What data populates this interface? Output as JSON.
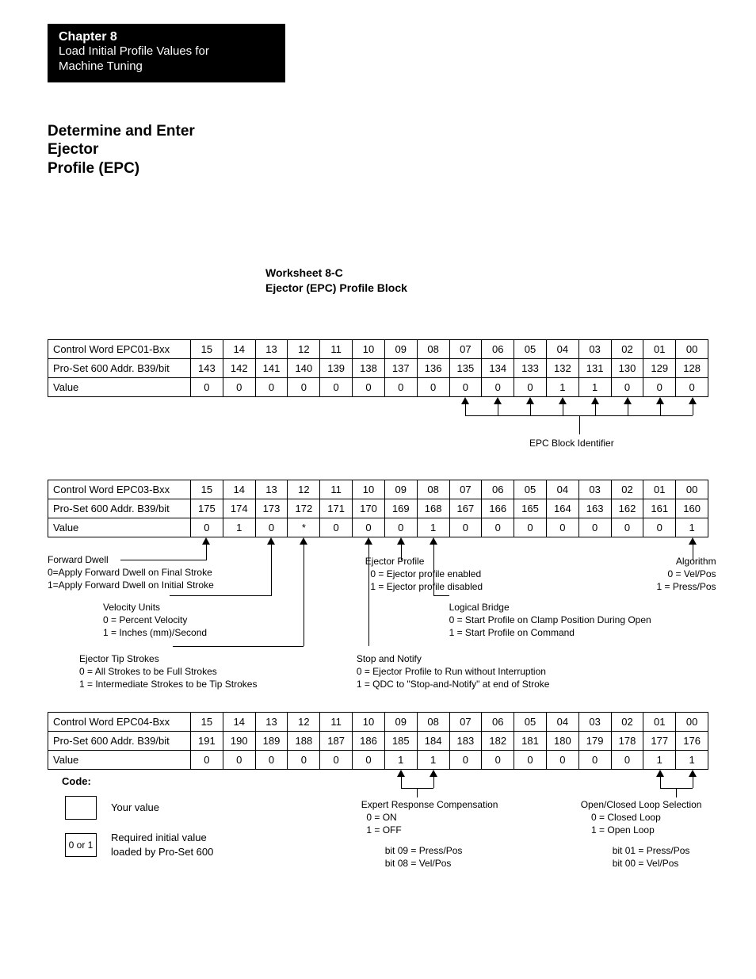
{
  "chapter": {
    "number": "Chapter  8",
    "title_line1": "Load Initial Profile Values for",
    "title_line2": "Machine Tuning"
  },
  "section_title_line1": "Determine and Enter Ejector",
  "section_title_line2": "Profile (EPC)",
  "worksheet": {
    "line1": "Worksheet 8-C",
    "line2": "Ejector (EPC) Profile Block"
  },
  "row_labels": {
    "ctrl_prefix": "Control Word ",
    "addr": "Pro-Set 600 Addr. B39/bit",
    "value": "Value"
  },
  "bit_headers": [
    "15",
    "14",
    "13",
    "12",
    "11",
    "10",
    "09",
    "08",
    "07",
    "06",
    "05",
    "04",
    "03",
    "02",
    "01",
    "00"
  ],
  "table1": {
    "name": "EPC01-Bxx",
    "addr": [
      "143",
      "142",
      "141",
      "140",
      "139",
      "138",
      "137",
      "136",
      "135",
      "134",
      "133",
      "132",
      "131",
      "130",
      "129",
      "128"
    ],
    "value": [
      "0",
      "0",
      "0",
      "0",
      "0",
      "0",
      "0",
      "0",
      "0",
      "0",
      "0",
      "1",
      "1",
      "0",
      "0",
      "0"
    ]
  },
  "epc_block_id_label": "EPC Block Identifier",
  "table2": {
    "name": "EPC03-Bxx",
    "addr": [
      "175",
      "174",
      "173",
      "172",
      "171",
      "170",
      "169",
      "168",
      "167",
      "166",
      "165",
      "164",
      "163",
      "162",
      "161",
      "160"
    ],
    "value": [
      "0",
      "1",
      "0",
      "*",
      "0",
      "0",
      "0",
      "1",
      "0",
      "0",
      "0",
      "0",
      "0",
      "0",
      "0",
      "1"
    ]
  },
  "t2_annotations": {
    "forward_dwell": {
      "title": "Forward Dwell",
      "l1": "0=Apply Forward Dwell on Final Stroke",
      "l2": "1=Apply Forward Dwell on Initial Stroke"
    },
    "velocity_units": {
      "title": "Velocity Units",
      "l1": "0 = Percent Velocity",
      "l2": "1 = Inches (mm)/Second"
    },
    "ejector_tip": {
      "title": "Ejector Tip Strokes",
      "l1": "0 = All Strokes to be Full Strokes",
      "l2": "1 = Intermediate Strokes to be Tip Strokes"
    },
    "ejector_profile": {
      "title": "Ejector Profile",
      "l1": "0 = Ejector profile enabled",
      "l2": "1 = Ejector profile disabled"
    },
    "logical_bridge": {
      "title": "Logical Bridge",
      "l1": "0 = Start Profile on Clamp Position During Open",
      "l2": "1 = Start Profile on Command"
    },
    "stop_notify": {
      "title": "Stop and Notify",
      "l1": "0 = Ejector Profile to Run without Interruption",
      "l2": "1 = QDC to \"Stop-and-Notify\" at end of Stroke"
    },
    "algorithm": {
      "title": "Algorithm",
      "l1": "0 = Vel/Pos",
      "l2": "1 = Press/Pos"
    }
  },
  "table3": {
    "name": "EPC04-Bxx",
    "addr": [
      "191",
      "190",
      "189",
      "188",
      "187",
      "186",
      "185",
      "184",
      "183",
      "182",
      "181",
      "180",
      "179",
      "178",
      "177",
      "176"
    ],
    "value": [
      "0",
      "0",
      "0",
      "0",
      "0",
      "0",
      "1",
      "1",
      "0",
      "0",
      "0",
      "0",
      "0",
      "0",
      "1",
      "1"
    ]
  },
  "t3_annotations": {
    "erc": {
      "title": "Expert Response Compensation",
      "l1": "0 = ON",
      "l2": "1 = OFF",
      "sub1": "bit 09 = Press/Pos",
      "sub2": "bit 08 = Vel/Pos"
    },
    "loop": {
      "title": "Open/Closed Loop Selection",
      "l1": "0 = Closed Loop",
      "l2": "1 = Open Loop",
      "sub1": "bit 01 = Press/Pos",
      "sub2": "bit 00 = Vel/Pos"
    }
  },
  "code": {
    "title": "Code:",
    "your_value": "Your value",
    "preset_label": "0 or 1",
    "preset_desc_l1": "Required initial value",
    "preset_desc_l2": "loaded by Pro-Set 600"
  },
  "colors": {
    "bg": "#ffffff",
    "fg": "#000000"
  }
}
